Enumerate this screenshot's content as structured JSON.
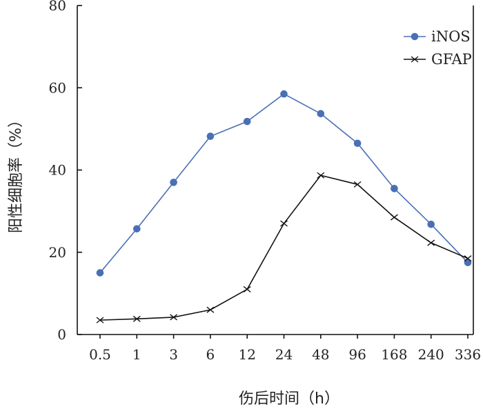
{
  "chart_data": {
    "type": "line",
    "xlabel": "伤后时间（h）",
    "ylabel": "阳性细胞率（%）",
    "categories": [
      "0.5",
      "1",
      "3",
      "6",
      "12",
      "24",
      "48",
      "96",
      "168",
      "240",
      "336"
    ],
    "ylim": [
      0,
      80
    ],
    "yticks": [
      0,
      20,
      40,
      60,
      80
    ],
    "grid": false,
    "legend_position": "top-right",
    "series": [
      {
        "name": "iNOS",
        "color": "#4a6fb5",
        "marker": "circle",
        "values": [
          15,
          25.7,
          37,
          48.2,
          51.8,
          58.5,
          53.7,
          46.5,
          35.5,
          26.8,
          17.5
        ]
      },
      {
        "name": "GFAP",
        "color": "#111111",
        "marker": "x",
        "values": [
          3.5,
          3.8,
          4.2,
          6,
          11,
          27,
          38.7,
          36.5,
          28.5,
          22.3,
          18.5
        ]
      }
    ]
  }
}
